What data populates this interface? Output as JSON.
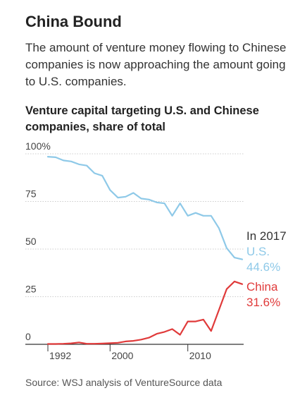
{
  "header": {
    "title": "China Bound",
    "subtitle": "The amount of venture money flowing to Chinese companies is now approaching the amount going to U.S. companies."
  },
  "chart_title": "Venture capital targeting U.S. and Chinese companies, share of total",
  "source": "Source: WSJ analysis of VentureSource data",
  "annotations": {
    "year_label": "In 2017",
    "us_name": "U.S.",
    "us_value": "44.6%",
    "china_name": "China",
    "china_value": "31.6%"
  },
  "colors": {
    "us": "#8ec9e8",
    "china": "#e03a3a",
    "grid": "#cccccc",
    "axis": "#333333"
  },
  "chart_data": {
    "type": "line",
    "title": "Venture capital targeting U.S. and Chinese companies, share of total",
    "xlabel": "",
    "ylabel": "",
    "xlim": [
      1992,
      2017
    ],
    "ylim": [
      0,
      100
    ],
    "y_ticks": [
      {
        "value": 100,
        "label": "100%"
      },
      {
        "value": 75,
        "label": "75"
      },
      {
        "value": 50,
        "label": "50"
      },
      {
        "value": 25,
        "label": "25"
      },
      {
        "value": 0,
        "label": "0"
      }
    ],
    "x_ticks": [
      {
        "value": 1992,
        "label": "1992"
      },
      {
        "value": 2000,
        "label": "2000"
      },
      {
        "value": 2010,
        "label": "2010"
      }
    ],
    "x": [
      1992,
      1993,
      1994,
      1995,
      1996,
      1997,
      1998,
      1999,
      2000,
      2001,
      2002,
      2003,
      2004,
      2005,
      2006,
      2007,
      2008,
      2009,
      2010,
      2011,
      2012,
      2013,
      2014,
      2015,
      2016,
      2017
    ],
    "series": [
      {
        "name": "U.S.",
        "values": [
          98.5,
          98.2,
          96.5,
          96.0,
          94.5,
          93.8,
          89.8,
          88.5,
          81.0,
          77.0,
          77.5,
          79.5,
          76.5,
          76.0,
          74.5,
          74.0,
          67.5,
          74.0,
          67.5,
          69.0,
          67.5,
          67.5,
          61.0,
          50.5,
          45.5,
          44.6
        ]
      },
      {
        "name": "China",
        "values": [
          0.2,
          0.2,
          0.3,
          0.5,
          1.0,
          0.3,
          0.3,
          0.4,
          0.6,
          0.8,
          1.5,
          1.8,
          2.5,
          3.5,
          5.5,
          6.5,
          8.0,
          5.0,
          12.0,
          12.0,
          13.0,
          7.0,
          18.0,
          29.0,
          33.0,
          31.6
        ]
      }
    ],
    "grid": true,
    "legend": "direct labels at right"
  }
}
